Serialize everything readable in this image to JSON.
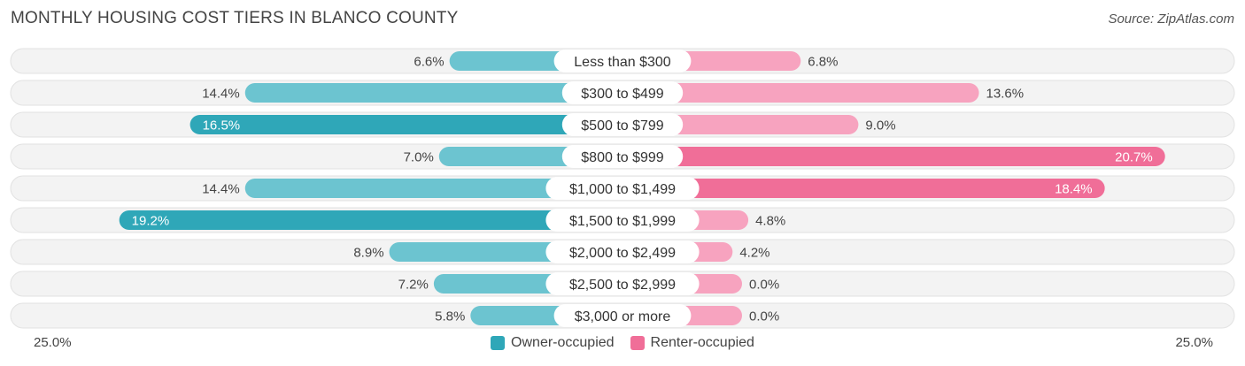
{
  "title": "MONTHLY HOUSING COST TIERS IN BLANCO COUNTY",
  "source": "Source: ZipAtlas.com",
  "colors": {
    "owner": "#6cc4d0",
    "owner_strong": "#2fa7b8",
    "renter": "#f7a3bf",
    "renter_strong": "#f06e98",
    "track": "#f2f2f2"
  },
  "chart_data": {
    "type": "bar",
    "orientation": "diverging-horizontal",
    "title": "MONTHLY HOUSING COST TIERS IN BLANCO COUNTY",
    "categories": [
      "Less than $300",
      "$300 to $499",
      "$500 to $799",
      "$800 to $999",
      "$1,000 to $1,499",
      "$1,500 to $1,999",
      "$2,000 to $2,499",
      "$2,500 to $2,999",
      "$3,000 or more"
    ],
    "series": [
      {
        "name": "Owner-occupied",
        "values": [
          6.6,
          14.4,
          16.5,
          7.0,
          14.4,
          19.2,
          8.9,
          7.2,
          5.8
        ]
      },
      {
        "name": "Renter-occupied",
        "values": [
          6.8,
          13.6,
          9.0,
          20.7,
          18.4,
          4.8,
          4.2,
          0.0,
          0.0
        ]
      }
    ],
    "value_labels": {
      "owner": [
        "6.6%",
        "14.4%",
        "16.5%",
        "7.0%",
        "14.4%",
        "19.2%",
        "8.9%",
        "7.2%",
        "5.8%"
      ],
      "renter": [
        "6.8%",
        "13.6%",
        "9.0%",
        "20.7%",
        "18.4%",
        "4.8%",
        "4.2%",
        "0.0%",
        "0.0%"
      ]
    },
    "xlim": [
      -25,
      25
    ],
    "axis_labels": {
      "left": "25.0%",
      "right": "25.0%"
    },
    "legend": {
      "position": "bottom-center",
      "owner": "Owner-occupied",
      "renter": "Renter-occupied"
    }
  }
}
